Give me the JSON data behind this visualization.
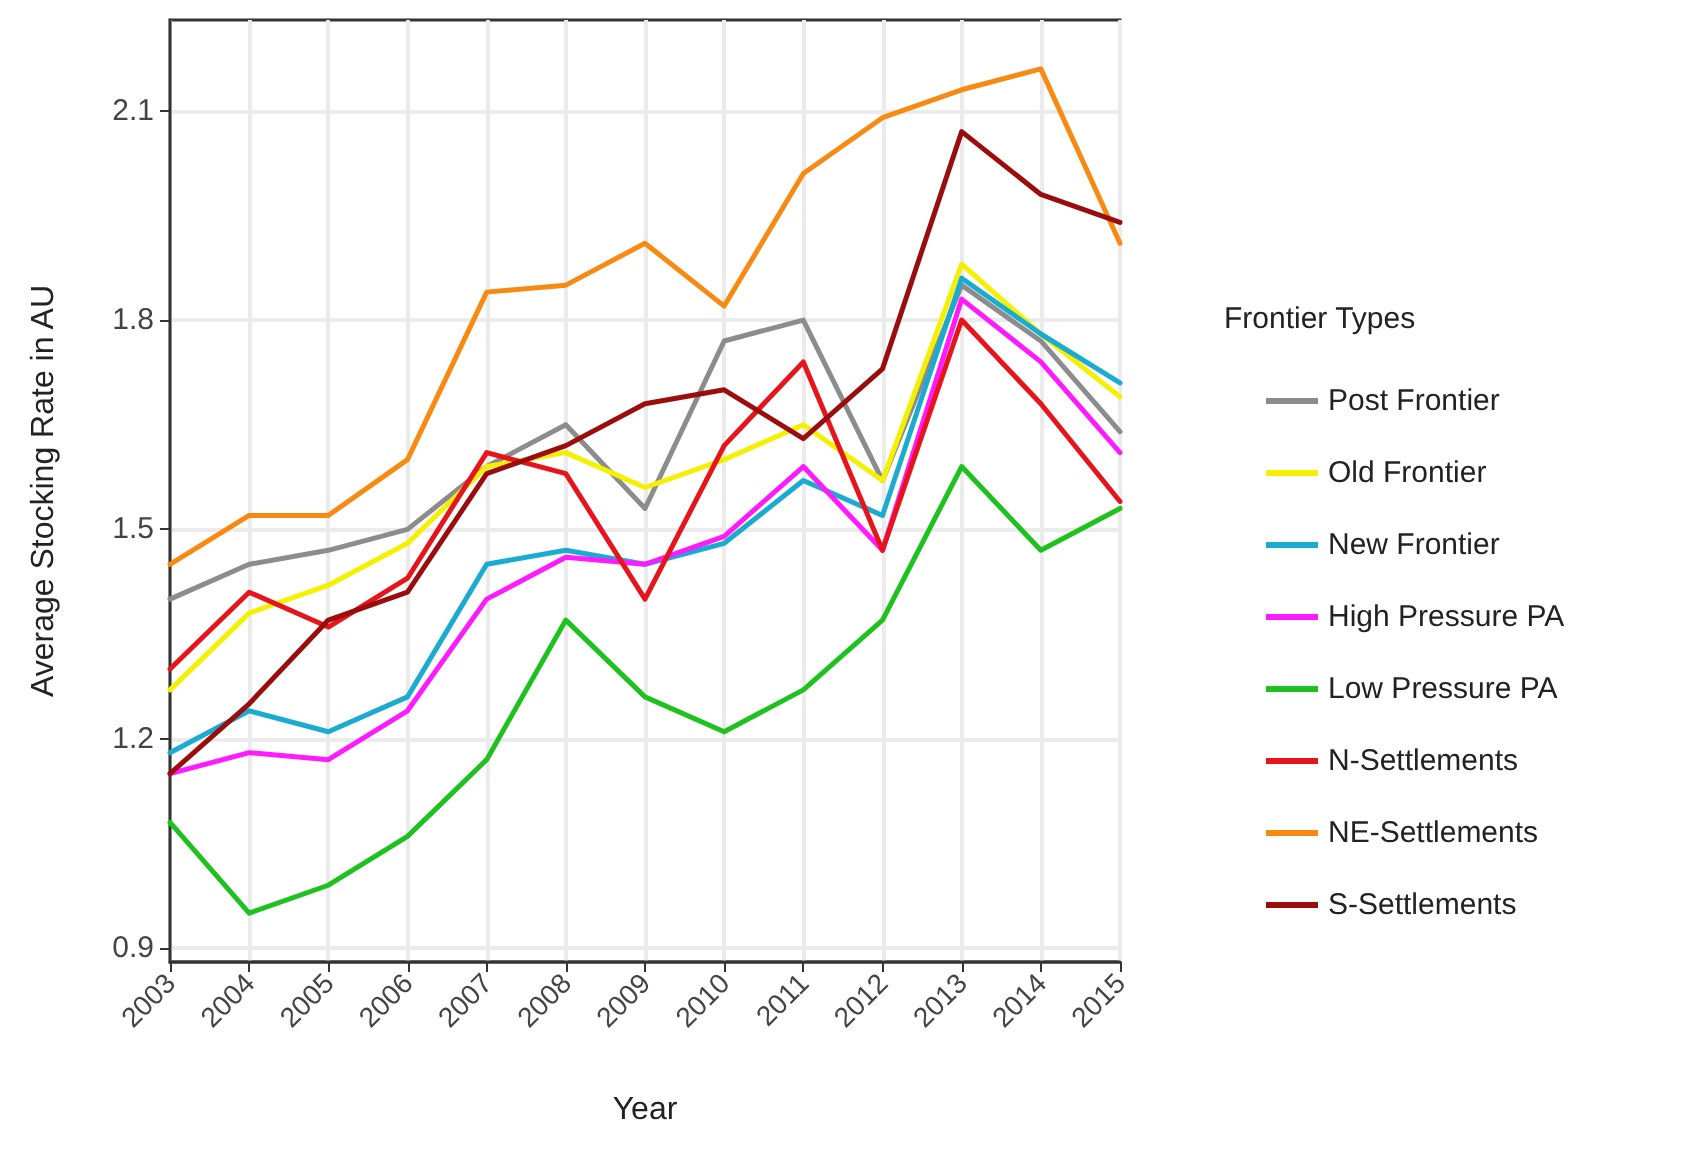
{
  "chart_data": {
    "type": "line",
    "xlabel": "Year",
    "ylabel": "Average Stocking Rate in AU",
    "legend_title": "Frontier Types",
    "legend": "right",
    "grid": true,
    "marker": "none",
    "line_style": "solid",
    "categories": [
      "2003",
      "2004",
      "2005",
      "2006",
      "2007",
      "2008",
      "2009",
      "2010",
      "2011",
      "2012",
      "2013",
      "2014",
      "2015"
    ],
    "ylim": [
      0.88,
      2.23
    ],
    "yticks": [
      0.9,
      1.2,
      1.5,
      1.8,
      2.1
    ],
    "series": [
      {
        "name": "Post Frontier",
        "color": "#8c8c8c",
        "values": [
          1.4,
          1.45,
          1.47,
          1.5,
          1.59,
          1.65,
          1.53,
          1.77,
          1.8,
          1.57,
          1.85,
          1.77,
          1.64
        ]
      },
      {
        "name": "Old Frontier",
        "color": "#f5f000",
        "values": [
          1.27,
          1.38,
          1.42,
          1.48,
          1.59,
          1.61,
          1.56,
          1.6,
          1.65,
          1.57,
          1.88,
          1.78,
          1.69
        ]
      },
      {
        "name": "New Frontier",
        "color": "#1aabd0",
        "values": [
          1.18,
          1.24,
          1.21,
          1.26,
          1.45,
          1.47,
          1.45,
          1.48,
          1.57,
          1.52,
          1.86,
          1.78,
          1.71
        ]
      },
      {
        "name": "High Pressure PA",
        "color": "#ff1aff",
        "values": [
          1.15,
          1.18,
          1.17,
          1.24,
          1.4,
          1.46,
          1.45,
          1.49,
          1.59,
          1.47,
          1.83,
          1.74,
          1.61
        ]
      },
      {
        "name": "Low Pressure PA",
        "color": "#1ec21e",
        "values": [
          1.08,
          0.95,
          0.99,
          1.06,
          1.17,
          1.37,
          1.26,
          1.21,
          1.27,
          1.37,
          1.59,
          1.47,
          1.53
        ]
      },
      {
        "name": "N-Settlements",
        "color": "#e8141b",
        "values": [
          1.3,
          1.41,
          1.36,
          1.43,
          1.61,
          1.58,
          1.4,
          1.62,
          1.74,
          1.47,
          1.8,
          1.68,
          1.54
        ]
      },
      {
        "name": "NE-Settlements",
        "color": "#f88a12",
        "values": [
          1.45,
          1.52,
          1.52,
          1.6,
          1.84,
          1.85,
          1.91,
          1.82,
          2.01,
          2.09,
          2.13,
          2.16,
          1.91
        ]
      },
      {
        "name": "S-Settlements",
        "color": "#9b0d0d",
        "values": [
          1.15,
          1.25,
          1.37,
          1.41,
          1.58,
          1.62,
          1.68,
          1.7,
          1.63,
          1.73,
          2.07,
          1.98,
          1.94
        ]
      }
    ]
  }
}
